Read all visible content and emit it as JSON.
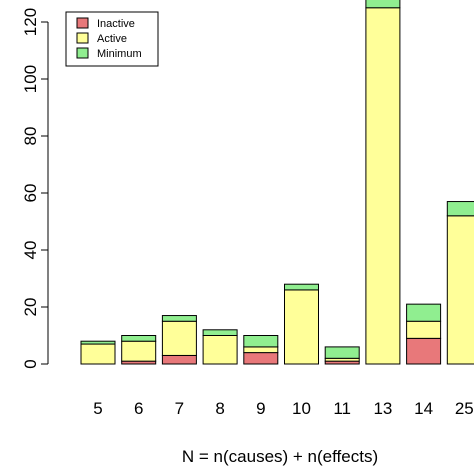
{
  "chart_data": {
    "type": "bar",
    "stacked": true,
    "categories": [
      "5",
      "6",
      "7",
      "8",
      "9",
      "10",
      "11",
      "13",
      "14",
      "25"
    ],
    "series": [
      {
        "name": "Inactive",
        "color": "#e8787a",
        "values": [
          0,
          1,
          3,
          0,
          4,
          0,
          1,
          0,
          9,
          0
        ]
      },
      {
        "name": "Active",
        "color": "#ffff99",
        "values": [
          7,
          7,
          12,
          10,
          2,
          26,
          1,
          125,
          6,
          52
        ]
      },
      {
        "name": "Minimum",
        "color": "#90ee90",
        "values": [
          1,
          2,
          2,
          2,
          4,
          2,
          4,
          3,
          6,
          5
        ]
      }
    ],
    "xlabel": "N = n(causes) + n(effects)",
    "ylabel": "",
    "ylim": [
      0,
      128
    ],
    "yticks": [
      0,
      20,
      40,
      60,
      80,
      100,
      120
    ],
    "legend_position": "top-left",
    "grid": false
  }
}
